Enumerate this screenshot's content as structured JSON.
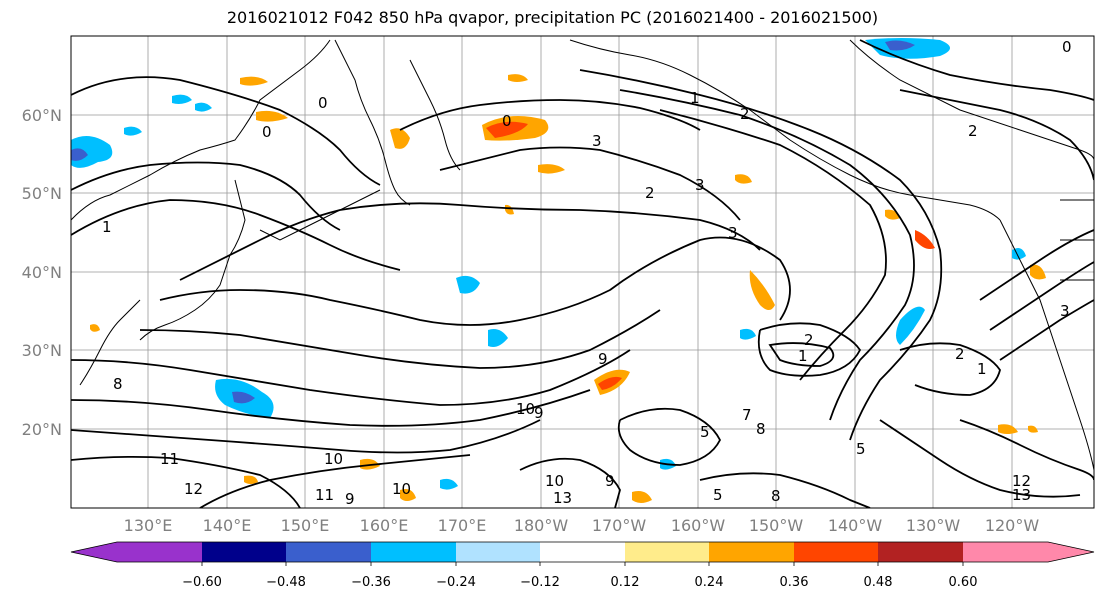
{
  "title": "2016021012 F042 850 hPa qvapor, precipitation PC (2016021400 - 2016021500)",
  "latitude_labels": [
    "60°N",
    "50°N",
    "40°N",
    "30°N",
    "20°N"
  ],
  "longitude_labels": [
    "130°E",
    "140°E",
    "150°E",
    "160°E",
    "170°E",
    "180°W",
    "170°W",
    "160°W",
    "150°W",
    "140°W",
    "130°W",
    "120°W"
  ],
  "colorbar": {
    "tick_labels": [
      "−0.60",
      "−0.48",
      "−0.36",
      "−0.24",
      "−0.12",
      "0.12",
      "0.24",
      "0.36",
      "0.48",
      "0.60"
    ],
    "colors": [
      "#9932cc",
      "#00008b",
      "#3a5fcd",
      "#00bfff",
      "#b0e2ff",
      "#ffffff",
      "#ffec8b",
      "#ffa500",
      "#ff4500",
      "#b22222",
      "#ff88aa"
    ]
  },
  "contour_labels": [
    {
      "text": "0"
    },
    {
      "text": "0"
    },
    {
      "text": "0"
    },
    {
      "text": "0"
    },
    {
      "text": "1"
    },
    {
      "text": "1"
    },
    {
      "text": "2"
    },
    {
      "text": "2"
    },
    {
      "text": "2"
    },
    {
      "text": "3"
    },
    {
      "text": "3"
    },
    {
      "text": "3"
    },
    {
      "text": "3"
    },
    {
      "text": "2"
    },
    {
      "text": "1"
    },
    {
      "text": "8"
    },
    {
      "text": "9"
    },
    {
      "text": "9"
    },
    {
      "text": "10"
    },
    {
      "text": "11"
    },
    {
      "text": "12"
    },
    {
      "text": "10"
    },
    {
      "text": "10"
    },
    {
      "text": "9"
    },
    {
      "text": "13"
    },
    {
      "text": "10"
    },
    {
      "text": "9"
    },
    {
      "text": "5"
    },
    {
      "text": "8"
    },
    {
      "text": "5"
    },
    {
      "text": "12"
    },
    {
      "text": "13"
    },
    {
      "text": "2"
    },
    {
      "text": "1"
    },
    {
      "text": "5"
    },
    {
      "text": "7"
    },
    {
      "text": "8"
    },
    {
      "text": "11"
    }
  ]
}
